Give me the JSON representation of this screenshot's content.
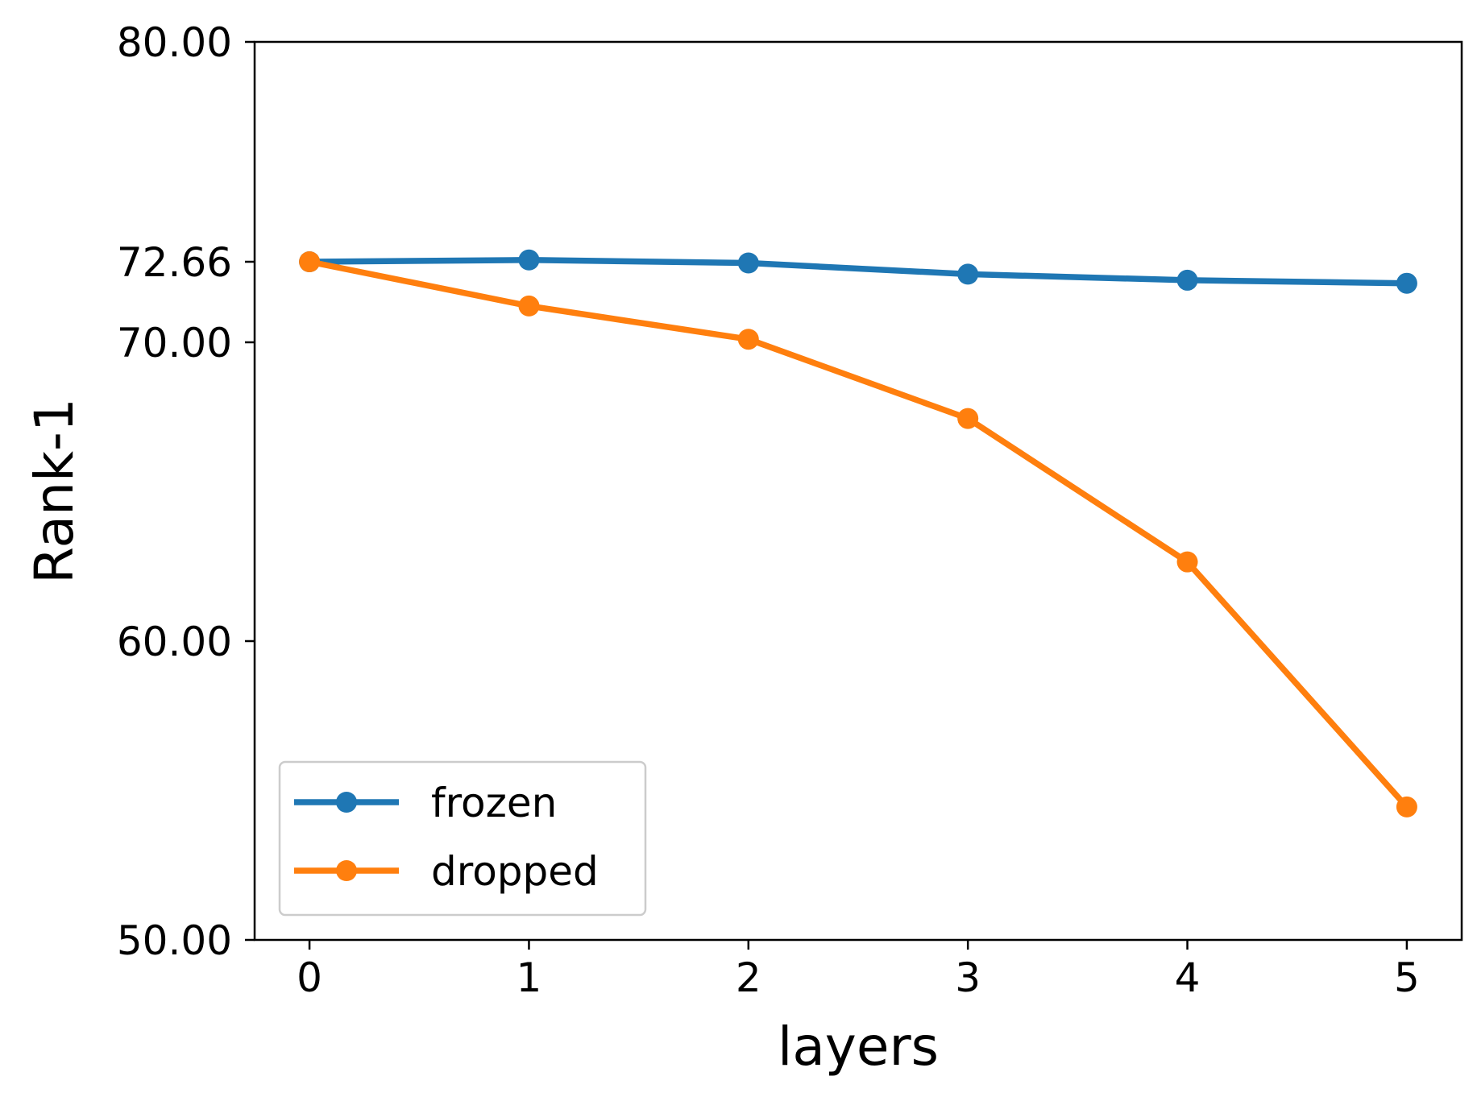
{
  "chart_data": {
    "type": "line",
    "title": "",
    "xlabel": "layers",
    "ylabel": "Rank-1",
    "x": [
      0,
      1,
      2,
      3,
      4,
      5
    ],
    "xlim": [
      -0.25,
      5.25
    ],
    "ylim": [
      50.0,
      80.0
    ],
    "x_ticks": [
      0,
      1,
      2,
      3,
      4,
      5
    ],
    "x_tick_labels": [
      "0",
      "1",
      "2",
      "3",
      "4",
      "5"
    ],
    "y_ticks": [
      50.0,
      60.0,
      70.0,
      72.66,
      80.0
    ],
    "y_tick_labels": [
      "50.00",
      "60.00",
      "70.00",
      "72.66",
      "80.00"
    ],
    "grid": false,
    "legend_position": "lower-left",
    "series": [
      {
        "name": "frozen",
        "color": "#1f77b4",
        "marker": "circle",
        "values": [
          72.66,
          72.72,
          72.62,
          72.25,
          72.05,
          71.95
        ]
      },
      {
        "name": "dropped",
        "color": "#ff7f0e",
        "marker": "circle",
        "values": [
          72.66,
          71.2,
          70.1,
          67.45,
          62.65,
          54.45
        ]
      }
    ]
  }
}
